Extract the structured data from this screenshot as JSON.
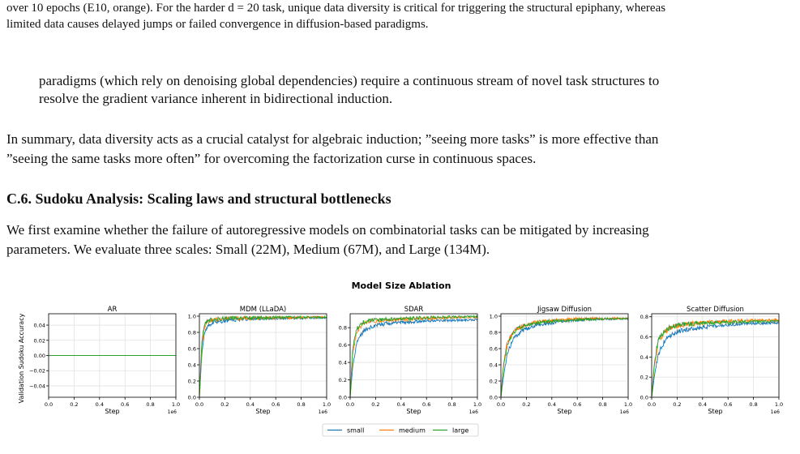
{
  "caption_top": {
    "line1": "over 10 epochs (E10, orange). For the harder d = 20 task, unique data diversity is critical for triggering the structural epiphany, whereas",
    "line2": "limited data causes delayed jumps or failed convergence in diffusion-based paradigms."
  },
  "para_paradigms": {
    "line1": "paradigms (which rely on denoising global dependencies) require a continuous stream of novel task structures to",
    "line2": "resolve the gradient variance inherent in bidirectional induction."
  },
  "para_summary": {
    "line1": "In summary, data diversity acts as a crucial catalyst for algebraic induction; ”seeing more tasks” is more effective than",
    "line2": "”seeing the same tasks more often” for overcoming the factorization curse in continuous spaces."
  },
  "section_heading": "C.6. Sudoku Analysis: Scaling laws and structural bottlenecks",
  "para_sudoku": {
    "line1": "We first examine whether the failure of autoregressive models on combinatorial tasks can be mitigated by increasing",
    "line2": "parameters. We evaluate three scales: Small (22M), Medium (67M), and Large (134M)."
  },
  "figure": {
    "suptitle": "Model Size Ablation",
    "ylabel": "Validation Sudoku Accuracy",
    "xlabel": "Step",
    "x_exponent": "1e6",
    "series_colors": {
      "small": "#1f77b4",
      "medium": "#ff7f0e",
      "large": "#2ca02c"
    },
    "legend": [
      "small",
      "medium",
      "large"
    ]
  },
  "chart_data": [
    {
      "type": "line",
      "title": "AR",
      "xlabel": "Step",
      "xlim": [
        0,
        1.0
      ],
      "ylim": [
        -0.055,
        0.055
      ],
      "yticks": [
        "−0.04",
        "−0.02",
        "0.00",
        "0.02",
        "0.04"
      ],
      "ytick_values": [
        -0.04,
        -0.02,
        0.0,
        0.02,
        0.04
      ],
      "xticks": [
        "0.0",
        "0.2",
        "0.4",
        "0.6",
        "0.8",
        "1.0"
      ],
      "series": [
        {
          "name": "small",
          "x": [
            0,
            1.0
          ],
          "y": [
            0,
            0
          ]
        },
        {
          "name": "medium",
          "x": [
            0,
            1.0
          ],
          "y": [
            0,
            0
          ]
        },
        {
          "name": "large",
          "x": [
            0,
            1.0
          ],
          "y": [
            0,
            0
          ]
        }
      ]
    },
    {
      "type": "line",
      "title": "MDM (LLaDA)",
      "xlabel": "Step",
      "xlim": [
        0,
        1.0
      ],
      "ylim": [
        0,
        1.03
      ],
      "yticks": [
        "0.0",
        "0.2",
        "0.4",
        "0.6",
        "0.8",
        "1.0"
      ],
      "ytick_values": [
        0,
        0.2,
        0.4,
        0.6,
        0.8,
        1.0
      ],
      "xticks": [
        "0.0",
        "0.2",
        "0.4",
        "0.6",
        "0.8",
        "1.0"
      ],
      "series": [
        {
          "name": "small",
          "x": [
            0,
            0.02,
            0.04,
            0.06,
            0.1,
            0.2,
            0.3,
            0.5,
            0.7,
            1.0
          ],
          "y": [
            0,
            0.55,
            0.8,
            0.87,
            0.92,
            0.94,
            0.96,
            0.97,
            0.975,
            0.98
          ]
        },
        {
          "name": "medium",
          "x": [
            0,
            0.02,
            0.04,
            0.06,
            0.1,
            0.2,
            0.3,
            0.5,
            0.7,
            1.0
          ],
          "y": [
            0,
            0.65,
            0.88,
            0.93,
            0.95,
            0.97,
            0.975,
            0.98,
            0.982,
            0.985
          ]
        },
        {
          "name": "large",
          "x": [
            0,
            0.02,
            0.04,
            0.06,
            0.1,
            0.2,
            0.3,
            0.5,
            0.7,
            1.0
          ],
          "y": [
            0,
            0.7,
            0.9,
            0.94,
            0.96,
            0.97,
            0.978,
            0.982,
            0.985,
            0.988
          ]
        }
      ]
    },
    {
      "type": "line",
      "title": "SDAR",
      "xlabel": "Step",
      "xlim": [
        0,
        1.0
      ],
      "ylim": [
        0,
        0.96
      ],
      "yticks": [
        "0.0",
        "0.2",
        "0.4",
        "0.6",
        "0.8"
      ],
      "ytick_values": [
        0,
        0.2,
        0.4,
        0.6,
        0.8
      ],
      "xticks": [
        "0.0",
        "0.2",
        "0.4",
        "0.6",
        "0.8",
        "1.0"
      ],
      "series": [
        {
          "name": "small",
          "x": [
            0,
            0.02,
            0.05,
            0.1,
            0.15,
            0.2,
            0.3,
            0.5,
            0.7,
            1.0
          ],
          "y": [
            0,
            0.35,
            0.62,
            0.75,
            0.8,
            0.83,
            0.85,
            0.87,
            0.88,
            0.89
          ]
        },
        {
          "name": "medium",
          "x": [
            0,
            0.02,
            0.05,
            0.1,
            0.15,
            0.2,
            0.3,
            0.5,
            0.7,
            1.0
          ],
          "y": [
            0,
            0.5,
            0.75,
            0.84,
            0.87,
            0.88,
            0.89,
            0.9,
            0.91,
            0.92
          ]
        },
        {
          "name": "large",
          "x": [
            0,
            0.02,
            0.05,
            0.1,
            0.15,
            0.2,
            0.3,
            0.5,
            0.7,
            1.0
          ],
          "y": [
            0,
            0.55,
            0.78,
            0.86,
            0.88,
            0.89,
            0.9,
            0.91,
            0.92,
            0.93
          ]
        }
      ]
    },
    {
      "type": "line",
      "title": "Jigsaw Diffusion",
      "xlabel": "Step",
      "xlim": [
        0,
        1.0
      ],
      "ylim": [
        0,
        1.03
      ],
      "yticks": [
        "0.0",
        "0.2",
        "0.4",
        "0.6",
        "0.8",
        "1.0"
      ],
      "ytick_values": [
        0,
        0.2,
        0.4,
        0.6,
        0.8,
        1.0
      ],
      "xticks": [
        "0.0",
        "0.2",
        "0.4",
        "0.6",
        "0.8",
        "1.0"
      ],
      "series": [
        {
          "name": "small",
          "x": [
            0,
            0.02,
            0.05,
            0.1,
            0.15,
            0.2,
            0.3,
            0.5,
            0.7,
            1.0
          ],
          "y": [
            0,
            0.25,
            0.55,
            0.72,
            0.8,
            0.85,
            0.9,
            0.94,
            0.96,
            0.97
          ]
        },
        {
          "name": "medium",
          "x": [
            0,
            0.02,
            0.05,
            0.1,
            0.15,
            0.2,
            0.3,
            0.5,
            0.7,
            1.0
          ],
          "y": [
            0,
            0.4,
            0.68,
            0.82,
            0.87,
            0.9,
            0.93,
            0.96,
            0.97,
            0.975
          ]
        },
        {
          "name": "large",
          "x": [
            0,
            0.02,
            0.05,
            0.1,
            0.15,
            0.2,
            0.3,
            0.5,
            0.7,
            1.0
          ],
          "y": [
            0,
            0.38,
            0.65,
            0.8,
            0.86,
            0.89,
            0.92,
            0.95,
            0.965,
            0.97
          ]
        }
      ]
    },
    {
      "type": "line",
      "title": "Scatter Diffusion",
      "xlabel": "Step",
      "xlim": [
        0,
        1.0
      ],
      "ylim": [
        0,
        0.83
      ],
      "yticks": [
        "0.0",
        "0.2",
        "0.4",
        "0.6",
        "0.8"
      ],
      "ytick_values": [
        0,
        0.2,
        0.4,
        0.6,
        0.8
      ],
      "xticks": [
        "0.0",
        "0.2",
        "0.4",
        "0.6",
        "0.8",
        "1.0"
      ],
      "series": [
        {
          "name": "small",
          "x": [
            0,
            0.02,
            0.05,
            0.1,
            0.15,
            0.2,
            0.3,
            0.5,
            0.7,
            1.0
          ],
          "y": [
            0,
            0.2,
            0.42,
            0.56,
            0.62,
            0.65,
            0.68,
            0.71,
            0.73,
            0.74
          ]
        },
        {
          "name": "medium",
          "x": [
            0,
            0.02,
            0.05,
            0.1,
            0.15,
            0.2,
            0.3,
            0.5,
            0.7,
            1.0
          ],
          "y": [
            0,
            0.3,
            0.55,
            0.65,
            0.69,
            0.71,
            0.73,
            0.75,
            0.76,
            0.77
          ]
        },
        {
          "name": "large",
          "x": [
            0,
            0.02,
            0.05,
            0.1,
            0.15,
            0.2,
            0.3,
            0.5,
            0.7,
            1.0
          ],
          "y": [
            0,
            0.33,
            0.57,
            0.66,
            0.7,
            0.72,
            0.73,
            0.74,
            0.75,
            0.755
          ]
        }
      ]
    }
  ]
}
